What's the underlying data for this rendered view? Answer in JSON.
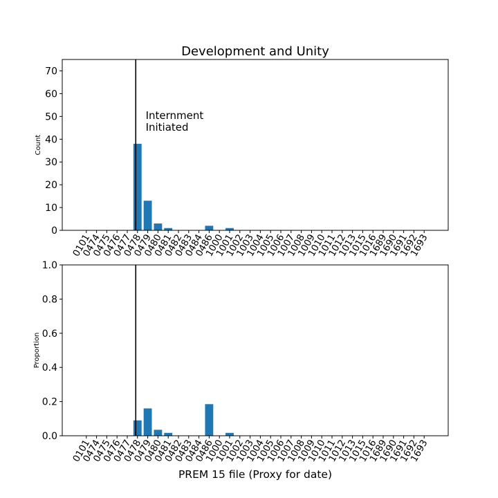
{
  "figure": {
    "title": "Development and Unity"
  },
  "chart_data": [
    {
      "type": "bar",
      "title": "Development and Unity",
      "xlabel": "",
      "ylabel": "Count",
      "ylim": [
        0,
        75
      ],
      "yticks": [
        0,
        10,
        20,
        30,
        40,
        50,
        60,
        70
      ],
      "grid": false,
      "color": "#1f77b4",
      "categories": [
        "0101",
        "0474",
        "0475",
        "0476",
        "0477",
        "0478",
        "0479",
        "0480",
        "0481",
        "0482",
        "0483",
        "0484",
        "0486",
        "1000",
        "1001",
        "1002",
        "1003",
        "1004",
        "1005",
        "1006",
        "1007",
        "1008",
        "1009",
        "1010",
        "1011",
        "1012",
        "1013",
        "1015",
        "1016",
        "1689",
        "1690",
        "1691",
        "1692",
        "1693"
      ],
      "values": [
        0,
        0,
        0,
        0,
        0,
        38,
        13,
        3,
        1,
        0,
        0,
        0,
        2,
        0,
        1,
        0,
        0,
        0,
        0,
        0,
        0,
        0,
        0,
        0,
        0,
        0,
        0,
        0,
        0,
        0,
        0,
        0,
        0,
        0
      ],
      "vline": {
        "category": "0478",
        "offset": -0.17
      },
      "annotation": {
        "lines": [
          "Internment",
          "Initiated"
        ],
        "x_category": "0479",
        "y": 44
      }
    },
    {
      "type": "bar",
      "title": "",
      "xlabel": "PREM 15 file (Proxy for date)",
      "ylabel": "Proportion",
      "ylim": [
        0,
        1.0
      ],
      "yticks": [
        "0.0",
        "0.2",
        "0.4",
        "0.6",
        "0.8",
        "1.0"
      ],
      "grid": false,
      "color": "#1f77b4",
      "categories": [
        "0101",
        "0474",
        "0475",
        "0476",
        "0477",
        "0478",
        "0479",
        "0480",
        "0481",
        "0482",
        "0483",
        "0484",
        "0486",
        "1000",
        "1001",
        "1002",
        "1003",
        "1004",
        "1005",
        "1006",
        "1007",
        "1008",
        "1009",
        "1010",
        "1011",
        "1012",
        "1013",
        "1015",
        "1016",
        "1689",
        "1690",
        "1691",
        "1692",
        "1693"
      ],
      "values": [
        0,
        0,
        0,
        0,
        0,
        0.09,
        0.16,
        0.035,
        0.017,
        0,
        0,
        0,
        0.185,
        0,
        0.017,
        0,
        0,
        0,
        0,
        0,
        0,
        0,
        0,
        0,
        0,
        0,
        0,
        0,
        0,
        0,
        0,
        0,
        0,
        0
      ],
      "vline": {
        "category": "0478",
        "offset": -0.17
      }
    }
  ]
}
